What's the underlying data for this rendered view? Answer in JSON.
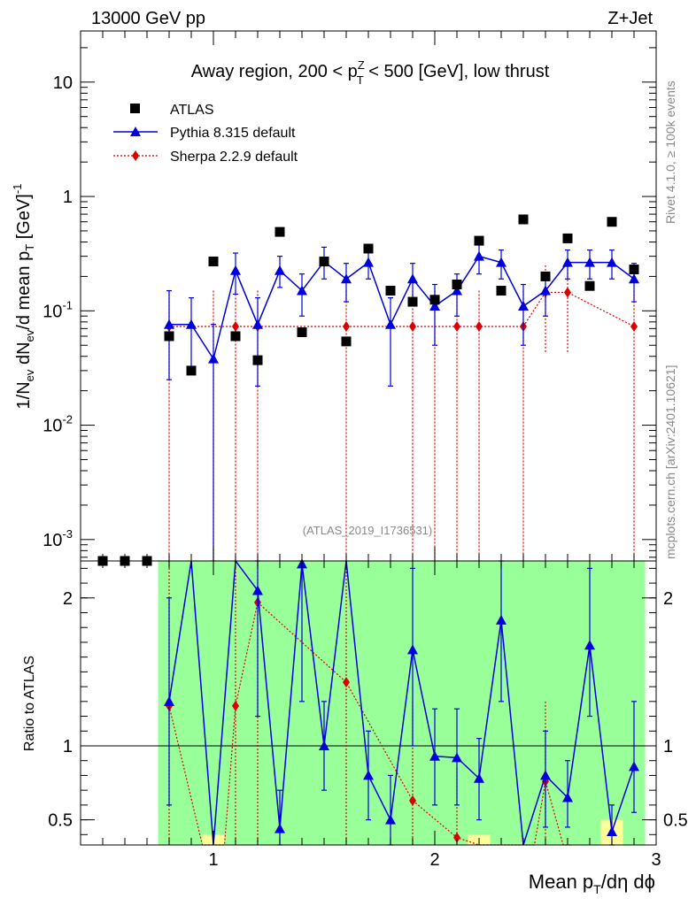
{
  "header": {
    "energy": "13000 GeV pp",
    "process": "Z+Jet"
  },
  "side_labels": {
    "rivet": "Rivet 4.1.0, ≥ 100k events",
    "mcplots": "mcplots.cern.ch [arXiv:2401.10621]"
  },
  "analysis_id": "(ATLAS_2019_I1736531)",
  "chart_data": [
    {
      "type": "scatter",
      "panel": "main",
      "title": "Away region, 200 < p_T^Z < 500 [GeV], low thrust",
      "title_parts": {
        "a": "Away region, 200 < p",
        "sup": "Z",
        "sub": "T",
        "b": " < 500 [GeV], low thrust"
      },
      "ylabel": "1/N_ev dN_ev/d mean p_T [GeV]^-1",
      "ylabel_parts": {
        "p1": "1/N",
        "s1": "ev",
        "p2": " dN",
        "s2": "ev",
        "p3": "/d mean p",
        "s3": "T",
        "p4": " [GeV]",
        "sup": "-1"
      },
      "yscale": "log",
      "ylim": [
        0.00065,
        28
      ],
      "xlim": [
        0.4,
        3.0
      ],
      "y_ticks": [
        {
          "value": 0.001,
          "base": "10",
          "exp": "-3"
        },
        {
          "value": 0.01,
          "base": "10",
          "exp": "-2"
        },
        {
          "value": 0.1,
          "base": "10",
          "exp": "-1"
        },
        {
          "value": 1,
          "base": "1",
          "exp": ""
        },
        {
          "value": 10,
          "base": "10",
          "exp": ""
        }
      ],
      "legend": {
        "position": "top-left",
        "entries": [
          "ATLAS",
          "Pythia 8.315 default",
          "Sherpa 2.2.9 default"
        ]
      },
      "series": [
        {
          "name": "ATLAS",
          "color": "#000000",
          "marker": "square",
          "points": [
            {
              "x": 0.5,
              "y": 0.00065
            },
            {
              "x": 0.6,
              "y": 0.00065
            },
            {
              "x": 0.7,
              "y": 0.00065
            },
            {
              "x": 0.8,
              "y": 0.06
            },
            {
              "x": 0.9,
              "y": 0.03
            },
            {
              "x": 1.0,
              "y": 0.27
            },
            {
              "x": 1.1,
              "y": 0.06
            },
            {
              "x": 1.2,
              "y": 0.037
            },
            {
              "x": 1.3,
              "y": 0.49
            },
            {
              "x": 1.4,
              "y": 0.065
            },
            {
              "x": 1.5,
              "y": 0.27
            },
            {
              "x": 1.6,
              "y": 0.054
            },
            {
              "x": 1.7,
              "y": 0.35
            },
            {
              "x": 1.8,
              "y": 0.15
            },
            {
              "x": 1.9,
              "y": 0.12
            },
            {
              "x": 2.0,
              "y": 0.125
            },
            {
              "x": 2.1,
              "y": 0.17
            },
            {
              "x": 2.2,
              "y": 0.41
            },
            {
              "x": 2.3,
              "y": 0.15
            },
            {
              "x": 2.4,
              "y": 0.63
            },
            {
              "x": 2.5,
              "y": 0.2
            },
            {
              "x": 2.6,
              "y": 0.43
            },
            {
              "x": 2.7,
              "y": 0.165
            },
            {
              "x": 2.8,
              "y": 0.6
            },
            {
              "x": 2.9,
              "y": 0.23
            }
          ]
        },
        {
          "name": "Pythia 8.315 default",
          "color": "#0000dd",
          "marker": "triangle",
          "points": [
            {
              "x": 0.8,
              "y": 0.076,
              "lo": 0.025,
              "hi": 0.15
            },
            {
              "x": 0.9,
              "y": 0.076,
              "lo": 0.03,
              "hi": 0.13
            },
            {
              "x": 1.0,
              "y": 0.038,
              "lo": 0.0005,
              "hi": 0.076
            },
            {
              "x": 1.1,
              "y": 0.225,
              "lo": 0.14,
              "hi": 0.32
            },
            {
              "x": 1.2,
              "y": 0.076,
              "lo": 0.022,
              "hi": 0.13
            },
            {
              "x": 1.3,
              "y": 0.225,
              "lo": 0.16,
              "hi": 0.3
            },
            {
              "x": 1.4,
              "y": 0.15,
              "lo": 0.09,
              "hi": 0.21
            },
            {
              "x": 1.5,
              "y": 0.27,
              "lo": 0.19,
              "hi": 0.36
            },
            {
              "x": 1.6,
              "y": 0.19,
              "lo": 0.12,
              "hi": 0.26
            },
            {
              "x": 1.7,
              "y": 0.265,
              "lo": 0.19,
              "hi": 0.34
            },
            {
              "x": 1.8,
              "y": 0.076,
              "lo": 0.022,
              "hi": 0.13
            },
            {
              "x": 1.9,
              "y": 0.19,
              "lo": 0.12,
              "hi": 0.26
            },
            {
              "x": 2.0,
              "y": 0.11,
              "lo": 0.05,
              "hi": 0.17
            },
            {
              "x": 2.1,
              "y": 0.15,
              "lo": 0.09,
              "hi": 0.21
            },
            {
              "x": 2.2,
              "y": 0.3,
              "lo": 0.21,
              "hi": 0.39
            },
            {
              "x": 2.3,
              "y": 0.265,
              "lo": 0.19,
              "hi": 0.34
            },
            {
              "x": 2.4,
              "y": 0.11,
              "lo": 0.05,
              "hi": 0.17
            },
            {
              "x": 2.5,
              "y": 0.15,
              "lo": 0.09,
              "hi": 0.21
            },
            {
              "x": 2.6,
              "y": 0.265,
              "lo": 0.19,
              "hi": 0.34
            },
            {
              "x": 2.7,
              "y": 0.265,
              "lo": 0.19,
              "hi": 0.34
            },
            {
              "x": 2.8,
              "y": 0.265,
              "lo": 0.19,
              "hi": 0.34
            },
            {
              "x": 2.9,
              "y": 0.19,
              "lo": 0.12,
              "hi": 0.26
            }
          ]
        },
        {
          "name": "Sherpa 2.2.9 default",
          "color": "#dd0000",
          "marker": "diamond",
          "points": [
            {
              "x": 0.8,
              "y": 0.073,
              "lo": 0.0005,
              "hi": 0.15
            },
            {
              "x": 1.1,
              "y": 0.073,
              "lo": 0.0005,
              "hi": 0.15
            },
            {
              "x": 1.2,
              "y": 0.073,
              "lo": 0.0005,
              "hi": 0.15
            },
            {
              "x": 1.6,
              "y": 0.073,
              "lo": 0.0005,
              "hi": 0.15
            },
            {
              "x": 1.9,
              "y": 0.073,
              "lo": 0.0005,
              "hi": 0.15
            },
            {
              "x": 2.1,
              "y": 0.073,
              "lo": 0.0005,
              "hi": 0.15
            },
            {
              "x": 2.2,
              "y": 0.073,
              "lo": 0.0005,
              "hi": 0.15
            },
            {
              "x": 2.4,
              "y": 0.073,
              "lo": 0.0005,
              "hi": 0.15
            },
            {
              "x": 2.5,
              "y": 0.145,
              "lo": 0.042,
              "hi": 0.25
            },
            {
              "x": 2.6,
              "y": 0.145,
              "lo": 0.042,
              "hi": 0.25
            },
            {
              "x": 2.9,
              "y": 0.073,
              "lo": 0.0005,
              "hi": 0.15
            }
          ],
          "extra_bars": [
            {
              "x": 1.0,
              "lo": 0.0005,
              "hi": 0.15
            },
            {
              "x": 2.0,
              "lo": 0.0005,
              "hi": 0.15
            }
          ]
        }
      ]
    },
    {
      "type": "scatter",
      "panel": "ratio",
      "ylabel": "Ratio to ATLAS",
      "xlabel": "Mean p_T/dη dϕ",
      "xlabel_parts": {
        "a": "Mean p",
        "sub": "T",
        "b": "/dη dϕ"
      },
      "xlim": [
        0.4,
        3.0
      ],
      "ylim": [
        0.33,
        2.25
      ],
      "x_ticks": [
        {
          "value": 1,
          "label": "1"
        },
        {
          "value": 2,
          "label": "2"
        },
        {
          "value": 3,
          "label": "3"
        }
      ],
      "y_ticks": [
        {
          "value": 0.5,
          "label": "0.5"
        },
        {
          "value": 1,
          "label": "1"
        },
        {
          "value": 2,
          "label": "2"
        }
      ],
      "uncertainty_bands": [
        {
          "x0": 0.75,
          "x1": 0.85,
          "yellow": [
            0.33,
            2.25
          ],
          "green": [
            0.33,
            2.25
          ]
        },
        {
          "x0": 0.85,
          "x1": 0.95,
          "yellow": [
            0.33,
            2.25
          ],
          "green": [
            0.33,
            2.25
          ]
        },
        {
          "x0": 0.95,
          "x1": 1.05,
          "yellow": [
            0.33,
            2.25
          ],
          "green": [
            0.4,
            2.25
          ]
        },
        {
          "x0": 1.05,
          "x1": 1.15,
          "yellow": [
            0.33,
            2.25
          ],
          "green": [
            0.33,
            2.25
          ]
        },
        {
          "x0": 1.15,
          "x1": 1.25,
          "yellow": [
            0.33,
            2.25
          ],
          "green": [
            0.33,
            2.25
          ]
        },
        {
          "x0": 1.25,
          "x1": 1.35,
          "yellow": [
            0.33,
            2.25
          ],
          "green": [
            0.33,
            2.25
          ]
        },
        {
          "x0": 1.35,
          "x1": 1.45,
          "yellow": [
            0.33,
            2.25
          ],
          "green": [
            0.33,
            2.25
          ]
        },
        {
          "x0": 1.45,
          "x1": 1.55,
          "yellow": [
            0.33,
            2.25
          ],
          "green": [
            0.33,
            2.25
          ]
        },
        {
          "x0": 1.55,
          "x1": 1.65,
          "yellow": [
            0.33,
            2.25
          ],
          "green": [
            0.33,
            2.25
          ]
        },
        {
          "x0": 1.65,
          "x1": 1.75,
          "yellow": [
            0.33,
            2.25
          ],
          "green": [
            0.33,
            2.25
          ]
        },
        {
          "x0": 1.75,
          "x1": 1.85,
          "yellow": [
            0.33,
            2.25
          ],
          "green": [
            0.33,
            2.25
          ]
        },
        {
          "x0": 1.85,
          "x1": 1.95,
          "yellow": [
            0.33,
            2.25
          ],
          "green": [
            0.33,
            2.25
          ]
        },
        {
          "x0": 1.95,
          "x1": 2.05,
          "yellow": [
            0.33,
            2.25
          ],
          "green": [
            0.33,
            2.25
          ]
        },
        {
          "x0": 2.05,
          "x1": 2.15,
          "yellow": [
            0.33,
            2.25
          ],
          "green": [
            0.33,
            2.25
          ]
        },
        {
          "x0": 2.15,
          "x1": 2.25,
          "yellow": [
            0.33,
            2.25
          ],
          "green": [
            0.4,
            2.25
          ]
        },
        {
          "x0": 2.25,
          "x1": 2.35,
          "yellow": [
            0.33,
            2.25
          ],
          "green": [
            0.33,
            2.25
          ]
        },
        {
          "x0": 2.35,
          "x1": 2.45,
          "yellow": [
            0.33,
            2.25
          ],
          "green": [
            0.33,
            2.25
          ]
        },
        {
          "x0": 2.45,
          "x1": 2.55,
          "yellow": [
            0.33,
            2.25
          ],
          "green": [
            0.33,
            2.25
          ]
        },
        {
          "x0": 2.55,
          "x1": 2.65,
          "yellow": [
            0.33,
            2.25
          ],
          "green": [
            0.33,
            2.25
          ]
        },
        {
          "x0": 2.65,
          "x1": 2.75,
          "yellow": [
            0.33,
            2.25
          ],
          "green": [
            0.33,
            2.25
          ]
        },
        {
          "x0": 2.75,
          "x1": 2.85,
          "yellow": [
            0.33,
            2.25
          ],
          "green": [
            0.5,
            2.25
          ]
        },
        {
          "x0": 2.85,
          "x1": 2.95,
          "yellow": [
            0.33,
            2.25
          ],
          "green": [
            0.33,
            2.25
          ]
        }
      ],
      "series": [
        {
          "name": "Pythia 8.315 default",
          "color": "#0000dd",
          "marker": "triangle",
          "points": [
            {
              "x": 0.8,
              "y": 1.3,
              "lo": 0.6,
              "hi": 2.0
            },
            {
              "x": 0.9,
              "y": 2.25
            },
            {
              "x": 1.0,
              "y": 0.33
            },
            {
              "x": 1.1,
              "y": 2.25
            },
            {
              "x": 1.2,
              "y": 2.05,
              "lo": 1.2,
              "hi": 2.25
            },
            {
              "x": 1.3,
              "y": 0.44,
              "lo": 0.33,
              "hi": 0.7
            },
            {
              "x": 1.4,
              "y": 2.23,
              "lo": 1.3,
              "hi": 2.25
            },
            {
              "x": 1.5,
              "y": 1.0,
              "lo": 0.7,
              "hi": 1.3
            },
            {
              "x": 1.6,
              "y": 2.25
            },
            {
              "x": 1.7,
              "y": 0.8,
              "lo": 0.5,
              "hi": 1.1
            },
            {
              "x": 1.8,
              "y": 0.5,
              "lo": 0.33,
              "hi": 0.8
            },
            {
              "x": 1.9,
              "y": 1.65,
              "lo": 1.0,
              "hi": 2.2
            },
            {
              "x": 2.0,
              "y": 0.93,
              "lo": 0.6,
              "hi": 1.25
            },
            {
              "x": 2.1,
              "y": 0.92,
              "lo": 0.6,
              "hi": 1.25
            },
            {
              "x": 2.2,
              "y": 0.78,
              "lo": 0.5,
              "hi": 1.05
            },
            {
              "x": 2.3,
              "y": 1.85,
              "lo": 1.3,
              "hi": 2.25
            },
            {
              "x": 2.4,
              "y": 0.33
            },
            {
              "x": 2.5,
              "y": 0.8,
              "lo": 0.45,
              "hi": 1.1
            },
            {
              "x": 2.6,
              "y": 0.65,
              "lo": 0.45,
              "hi": 0.9
            },
            {
              "x": 2.7,
              "y": 1.68,
              "lo": 1.2,
              "hi": 2.2
            },
            {
              "x": 2.8,
              "y": 0.42,
              "lo": 0.33,
              "hi": 0.6
            },
            {
              "x": 2.9,
              "y": 0.86,
              "lo": 0.55,
              "hi": 1.3
            }
          ]
        },
        {
          "name": "Sherpa 2.2.9 default",
          "color": "#dd0000",
          "marker": "diamond",
          "points": [
            {
              "x": 0.8,
              "y": 1.27,
              "lo": 0.33,
              "hi": 2.25
            },
            {
              "x": 1.1,
              "y": 1.27,
              "lo": 0.33,
              "hi": 2.25
            },
            {
              "x": 1.2,
              "y": 1.97,
              "lo": 0.33,
              "hi": 2.25
            },
            {
              "x": 1.6,
              "y": 1.43,
              "lo": 0.33,
              "hi": 2.25
            },
            {
              "x": 1.9,
              "y": 0.63,
              "lo": 0.33,
              "hi": 1.3
            },
            {
              "x": 2.1,
              "y": 0.38,
              "lo": 0.33,
              "hi": 0.85
            },
            {
              "x": 2.5,
              "y": 0.76,
              "lo": 0.33,
              "hi": 1.3
            }
          ],
          "line_extra": [
            {
              "x": 0.95,
              "y": 0.33
            },
            {
              "x": 1.05,
              "y": 0.33
            },
            {
              "x": 2.2,
              "y": 0.33
            },
            {
              "x": 2.45,
              "y": 0.33
            },
            {
              "x": 2.58,
              "y": 0.33
            },
            {
              "x": 2.62,
              "y": 0.33
            }
          ]
        }
      ]
    }
  ]
}
